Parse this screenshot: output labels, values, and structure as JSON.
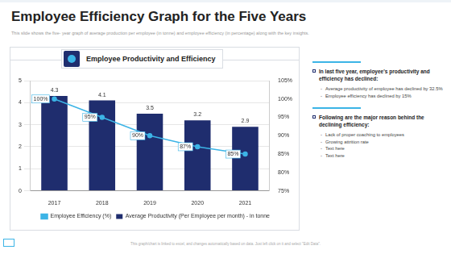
{
  "page": {
    "title": "Employee Efficiency Graph for the Five Years",
    "subtitle": "This slide shows the five- year graph of average production per employee (in tonne) and employee efficiency (in percentage) along with the key insights.",
    "insights": [
      {
        "heading": "In last five year, employee's productivity and efficiency has declined:",
        "items": [
          "Average productivity of employee has declined by 32.5%",
          "Employee efficiency has declined by 15%"
        ]
      },
      {
        "heading": "Following are the major reason behind the declining efficiency:",
        "items": [
          "Lack of proper coaching to employees",
          "Growing attrition rate",
          "Text here",
          "Text here"
        ]
      }
    ],
    "footer": "This graph/chart is linked to excel, and changes automatically based on data. Just left click on it and select \"Edit Data\"."
  },
  "chart_data": {
    "type": "bar",
    "title": "Employee Productivity and Efficiency",
    "categories": [
      "2017",
      "2018",
      "2019",
      "2020",
      "2021"
    ],
    "series": [
      {
        "name": "Average Productivity (Per Employee per month) - in tonne",
        "type": "bar",
        "color": "#1f2d6e",
        "values": [
          4.3,
          4.1,
          3.5,
          3.2,
          2.9
        ]
      },
      {
        "name": "Employee Efficiency (%)",
        "type": "line",
        "axis": "y2",
        "color": "#3cb4e6",
        "marker": "circle",
        "values": [
          100,
          95,
          90,
          87,
          85
        ],
        "value_labels": [
          "100%",
          "95%",
          "90%",
          "87%",
          "85%"
        ]
      }
    ],
    "ylim": [
      0,
      5
    ],
    "yticks": [
      0,
      1,
      2,
      3,
      4,
      5
    ],
    "y2lim": [
      75,
      105
    ],
    "y2ticks": [
      {
        "value": 75,
        "label": "75%"
      },
      {
        "value": 80,
        "label": "80%"
      },
      {
        "value": 85,
        "label": "85%"
      },
      {
        "value": 90,
        "label": "90%"
      },
      {
        "value": 95,
        "label": "95%"
      },
      {
        "value": 100,
        "label": "100%"
      },
      {
        "value": 105,
        "label": "105%"
      }
    ],
    "grid": true,
    "legend": "bottom",
    "data_labels": true
  }
}
